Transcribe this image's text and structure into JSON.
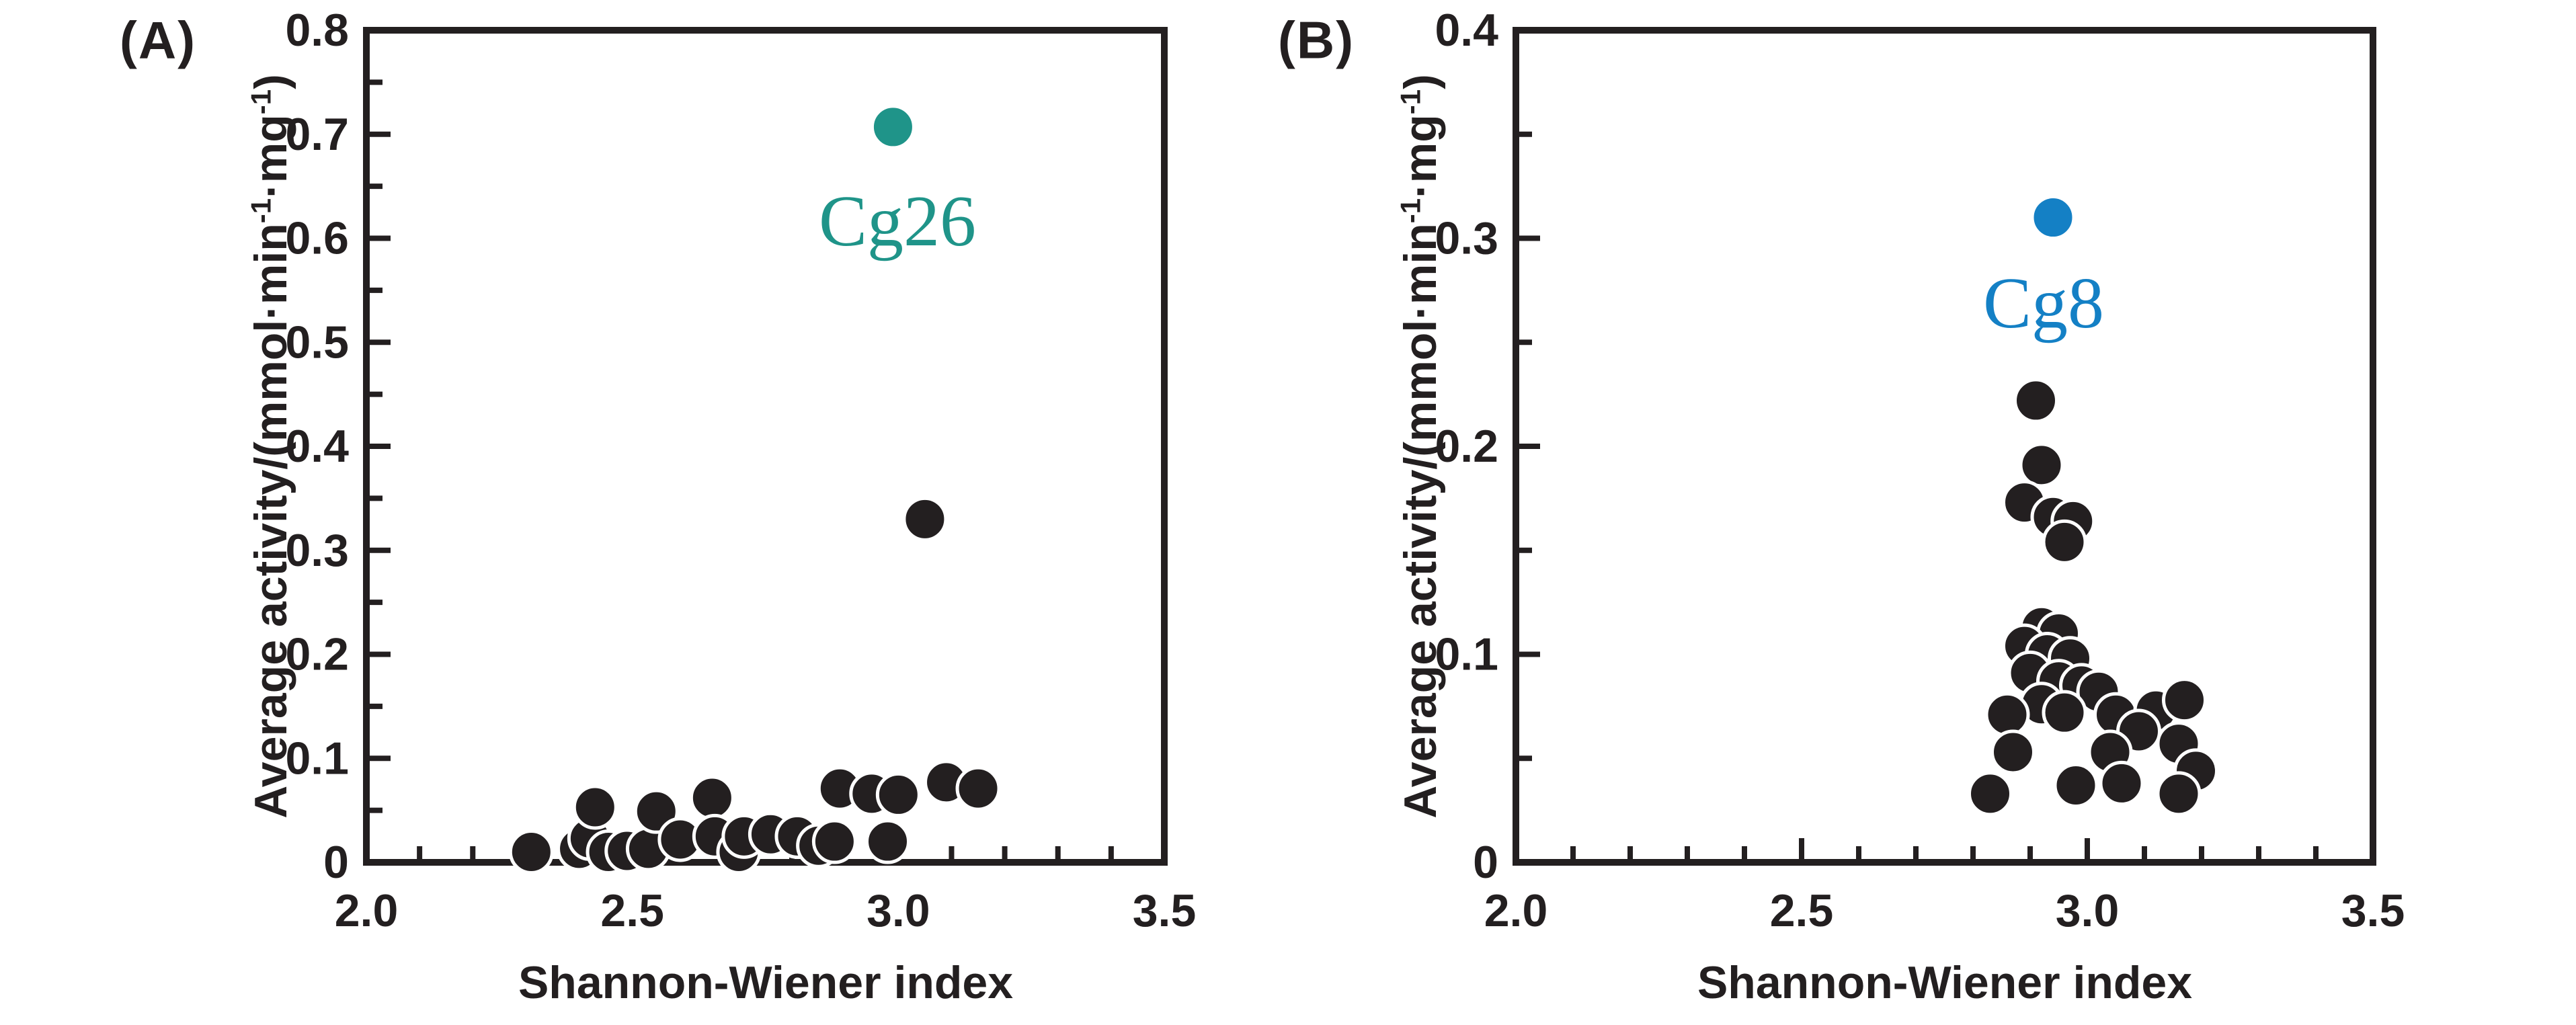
{
  "figure": {
    "background": "#ffffff",
    "axis_color": "#231f20",
    "marker_color": "#231f20",
    "marker_halo": "#ffffff"
  },
  "panels": [
    {
      "tag": "(A)",
      "x_title": "Shannon-Wiener index",
      "y_title_parts": [
        "Average activity/(mmol·min",
        "-1",
        "·mg",
        "-1",
        ")"
      ],
      "highlight_label": "Cg26",
      "highlight_color": "#1f9489"
    },
    {
      "tag": "(B)",
      "x_title": "Shannon-Wiener index",
      "y_title_parts": [
        "Average activity/(mmol·min",
        "-1",
        "·mg",
        "-1",
        ")"
      ],
      "highlight_label": "Cg8",
      "highlight_color": "#1480c5"
    }
  ],
  "chart_data": [
    {
      "type": "scatter",
      "panel": "A",
      "title": "",
      "xlabel": "Shannon-Wiener index",
      "ylabel": "Average activity/(mmol·min-1·mg-1)",
      "xlim": [
        2.0,
        3.5
      ],
      "ylim": [
        0,
        0.8
      ],
      "grid": false,
      "legend": "none",
      "x_tick_values": [
        2.0,
        2.5,
        3.0,
        3.5
      ],
      "x_tick_labels": [
        "2.0",
        "2.5",
        "3.0",
        "3.5"
      ],
      "x_minor_step": 0.1,
      "y_tick_step": 0.1,
      "y_minor_step": 0.05,
      "y_tick_labels": [
        "0",
        "0.1",
        "0.2",
        "0.3",
        "0.4",
        "0.5",
        "0.6",
        "0.7",
        "0.8"
      ],
      "series": [
        {
          "name": "isolates",
          "color": "#231f20",
          "points": [
            [
              2.31,
              0.01
            ],
            [
              2.4,
              0.013
            ],
            [
              2.42,
              0.023
            ],
            [
              2.455,
              0.01
            ],
            [
              2.43,
              0.053
            ],
            [
              2.49,
              0.011
            ],
            [
              2.53,
              0.013
            ],
            [
              2.545,
              0.049
            ],
            [
              2.59,
              0.022
            ],
            [
              2.65,
              0.062
            ],
            [
              2.655,
              0.025
            ],
            [
              2.7,
              0.01
            ],
            [
              2.71,
              0.025
            ],
            [
              2.76,
              0.027
            ],
            [
              2.81,
              0.025
            ],
            [
              2.85,
              0.016
            ],
            [
              2.88,
              0.02
            ],
            [
              2.89,
              0.071
            ],
            [
              2.95,
              0.066
            ],
            [
              2.98,
              0.02
            ],
            [
              3.0,
              0.065
            ],
            [
              3.09,
              0.077
            ],
            [
              3.15,
              0.071
            ],
            [
              3.05,
              0.33
            ]
          ]
        },
        {
          "name": "Cg26",
          "color": "#1f9489",
          "label": "Cg26",
          "points": [
            [
              2.99,
              0.707
            ]
          ]
        }
      ]
    },
    {
      "type": "scatter",
      "panel": "B",
      "title": "",
      "xlabel": "Shannon-Wiener index",
      "ylabel": "Average activity/(mmol·min-1·mg-1)",
      "xlim": [
        2.0,
        3.5
      ],
      "ylim": [
        0,
        0.4
      ],
      "grid": false,
      "legend": "none",
      "x_tick_values": [
        2.0,
        2.5,
        3.0,
        3.5
      ],
      "x_tick_labels": [
        "2.0",
        "2.5",
        "3.0",
        "3.5"
      ],
      "x_minor_step": 0.1,
      "y_tick_step": 0.1,
      "y_minor_step": 0.05,
      "y_tick_labels": [
        "0",
        "0.1",
        "0.2",
        "0.3",
        "0.4"
      ],
      "series": [
        {
          "name": "isolates",
          "color": "#231f20",
          "points": [
            [
              2.91,
              0.222
            ],
            [
              2.92,
              0.191
            ],
            [
              2.89,
              0.173
            ],
            [
              2.94,
              0.166
            ],
            [
              2.975,
              0.164
            ],
            [
              2.96,
              0.154
            ],
            [
              2.92,
              0.113
            ],
            [
              2.95,
              0.11
            ],
            [
              2.89,
              0.104
            ],
            [
              2.93,
              0.1
            ],
            [
              2.97,
              0.098
            ],
            [
              2.9,
              0.091
            ],
            [
              2.95,
              0.087
            ],
            [
              2.99,
              0.085
            ],
            [
              3.02,
              0.082
            ],
            [
              2.92,
              0.076
            ],
            [
              2.86,
              0.071
            ],
            [
              2.96,
              0.072
            ],
            [
              3.05,
              0.071
            ],
            [
              3.12,
              0.073
            ],
            [
              3.17,
              0.078
            ],
            [
              3.09,
              0.063
            ],
            [
              3.16,
              0.057
            ],
            [
              2.87,
              0.053
            ],
            [
              3.04,
              0.053
            ],
            [
              3.19,
              0.044
            ],
            [
              3.16,
              0.033
            ],
            [
              3.06,
              0.038
            ],
            [
              2.98,
              0.037
            ],
            [
              2.83,
              0.033
            ]
          ]
        },
        {
          "name": "Cg8",
          "color": "#1480c5",
          "label": "Cg8",
          "points": [
            [
              2.94,
              0.31
            ]
          ]
        }
      ]
    }
  ]
}
